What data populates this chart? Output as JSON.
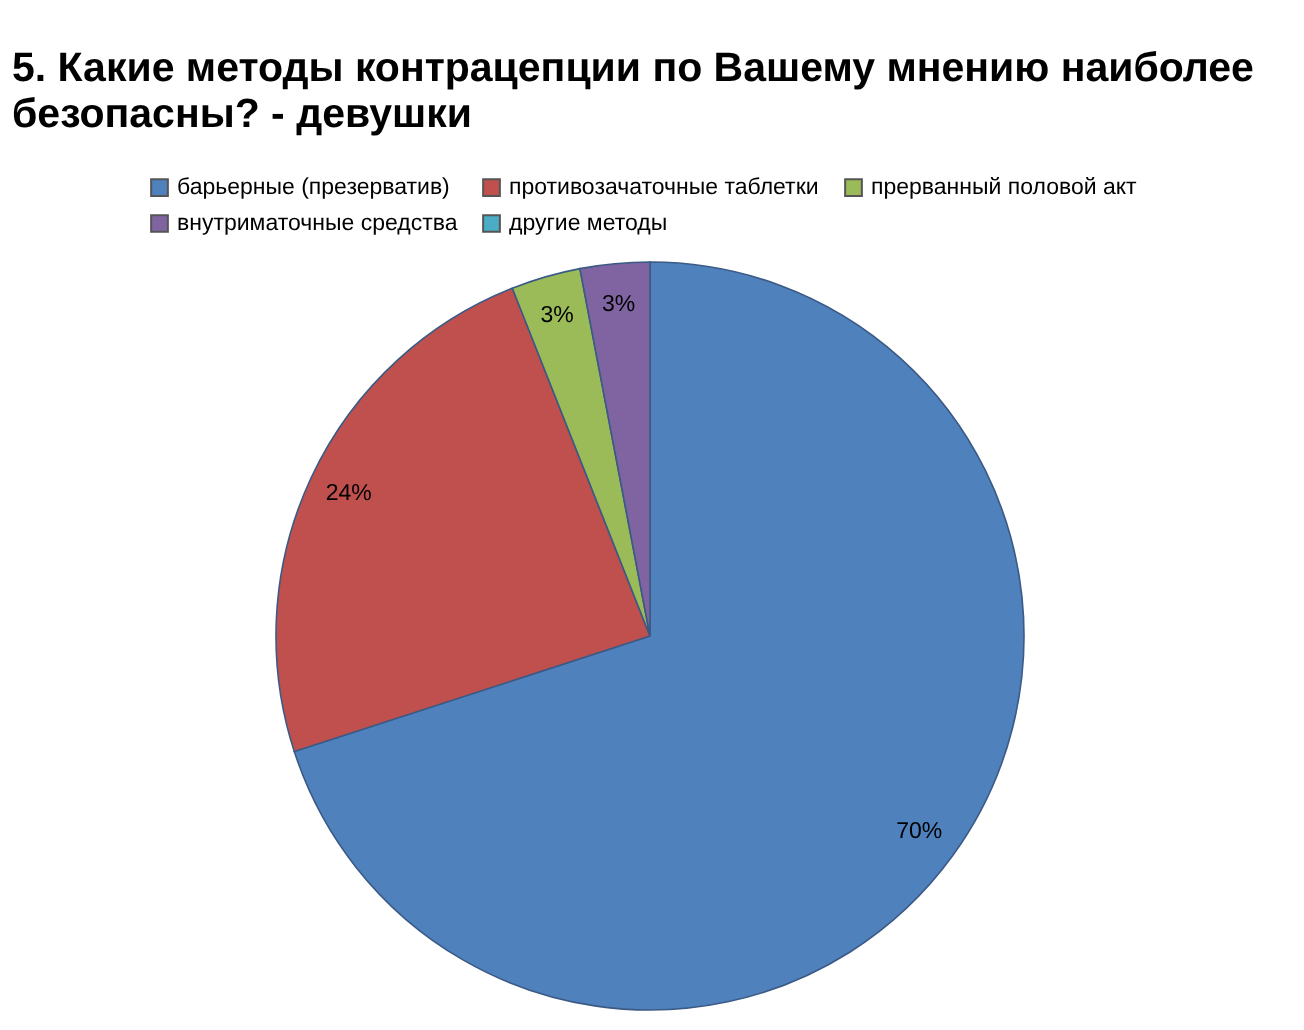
{
  "chart_data": {
    "type": "pie",
    "title": "5. Какие методы контрацепции по Вашему мнению наиболее безопасны? - девушки",
    "categories": [
      "барьерные (презерватив)",
      "противозачаточные таблетки",
      "прерванный половой акт",
      "внутриматочные средства",
      "другие методы"
    ],
    "values": [
      70,
      24,
      3,
      3,
      0
    ],
    "colors": [
      "#4f81bd",
      "#c0504d",
      "#9bbb59",
      "#8064a2",
      "#4bacc6"
    ],
    "value_labels": [
      "70%",
      "24%",
      "3%",
      "3%",
      null
    ],
    "legend": "top"
  }
}
